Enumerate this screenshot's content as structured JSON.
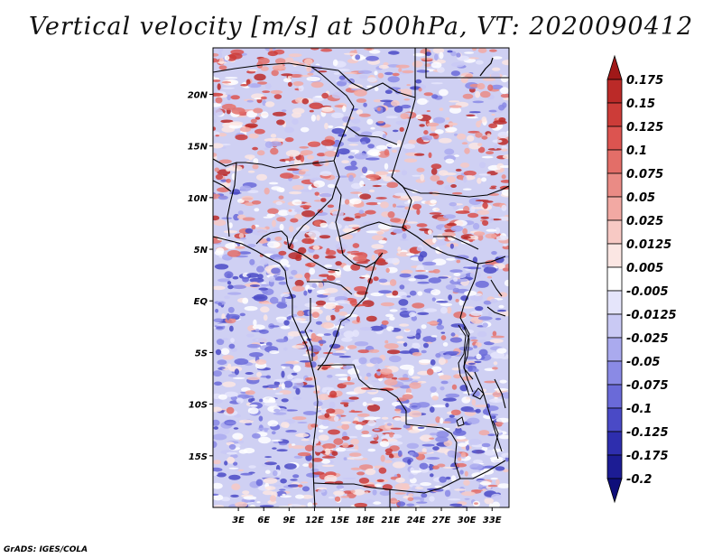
{
  "title": "Vertical velocity [m/s] at 500hPa, VT: 2020090412",
  "credit": "GrADS: IGES/COLA",
  "map": {
    "lon_range": [
      0,
      35
    ],
    "lat_range": [
      -20,
      24.5
    ],
    "lat_ticks": [
      "20N",
      "15N",
      "10N",
      "5N",
      "EQ",
      "5S",
      "10S",
      "15S"
    ],
    "lat_values": [
      20,
      15,
      10,
      5,
      0,
      -5,
      -10,
      -15
    ],
    "lon_ticks": [
      "3E",
      "6E",
      "9E",
      "12E",
      "15E",
      "18E",
      "21E",
      "24E",
      "27E",
      "30E",
      "33E"
    ],
    "lon_values": [
      3,
      6,
      9,
      12,
      15,
      18,
      21,
      24,
      27,
      30,
      33
    ]
  },
  "colorbar": {
    "labels": [
      "0.175",
      "0.15",
      "0.125",
      "0.1",
      "0.075",
      "0.05",
      "0.025",
      "0.0125",
      "0.005",
      "-0.005",
      "-0.0125",
      "-0.025",
      "-0.05",
      "-0.075",
      "-0.1",
      "-0.125",
      "-0.175",
      "-0.2"
    ],
    "colors": [
      "#a01818",
      "#bb2a28",
      "#cc3c38",
      "#dc5450",
      "#e36e68",
      "#ea8b85",
      "#f2a9a3",
      "#f7c9c4",
      "#fbe6e3",
      "#ffffff",
      "#e5e5fb",
      "#c9c9f4",
      "#aaaaee",
      "#8a8ae5",
      "#6a6ad8",
      "#4a4ac6",
      "#2e2eae",
      "#1c1c94",
      "#0e0e7a"
    ]
  }
}
